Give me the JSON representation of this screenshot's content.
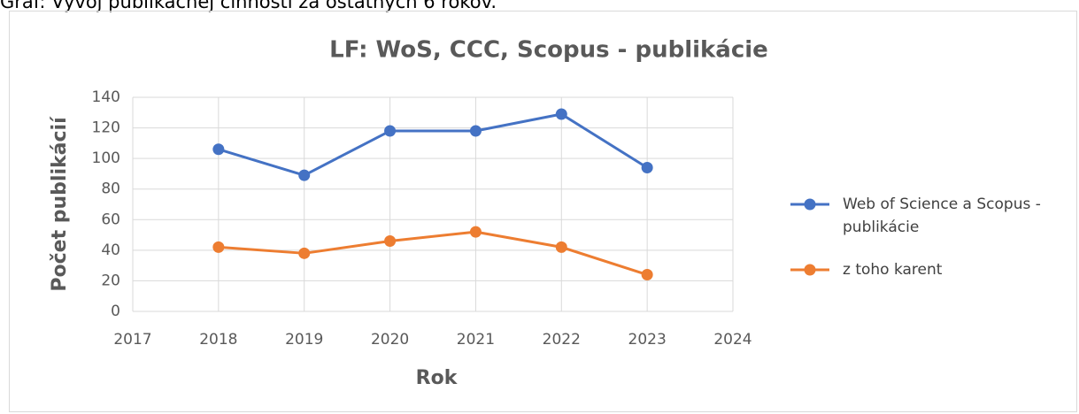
{
  "caption": "Graf: Vývoj publikačnej činnosti za ostatných 6 rokov.",
  "chart_data": {
    "type": "line",
    "title": "LF: WoS, CCC, Scopus - publikácie",
    "xlabel": "Rok",
    "ylabel": "Počet publikácií",
    "x": [
      2018,
      2019,
      2020,
      2021,
      2022,
      2023
    ],
    "series": [
      {
        "name": "Web of Science a Scopus - publikácie",
        "color": "#4472c4",
        "values": [
          106,
          89,
          118,
          118,
          129,
          94
        ]
      },
      {
        "name": "z toho karent",
        "color": "#ed7d31",
        "values": [
          42,
          38,
          46,
          52,
          42,
          24
        ]
      }
    ],
    "xlim": [
      2017,
      2024
    ],
    "xticks": [
      2017,
      2018,
      2019,
      2020,
      2021,
      2022,
      2023,
      2024
    ],
    "ylim": [
      0,
      140
    ],
    "yticks": [
      0,
      20,
      40,
      60,
      80,
      100,
      120,
      140
    ],
    "grid": true,
    "legend": "right"
  }
}
